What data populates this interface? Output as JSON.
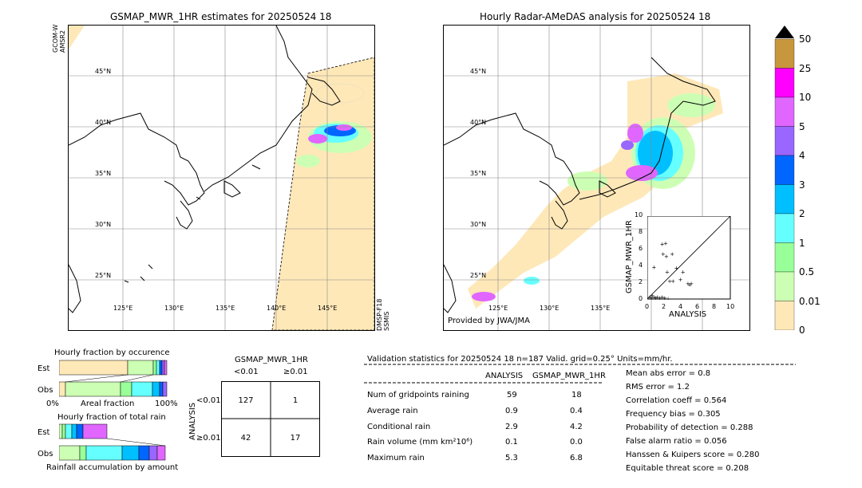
{
  "left_map": {
    "title": "GSMAP_MWR_1HR estimates for 20250524 18",
    "sat_top": "GCOM-W\nAMSR2",
    "sat_top_1": "GCOM-W",
    "sat_top_2": "AMSR2",
    "sat_bottom_1": "DMSP-F18",
    "sat_bottom_2": "SSMIS"
  },
  "right_map": {
    "title": "Hourly Radar-AMeDAS analysis for 20250524 18",
    "credit": "Provided by JWA/JMA"
  },
  "lat_labels": [
    "45°N",
    "40°N",
    "35°N",
    "30°N",
    "25°N"
  ],
  "lon_labels": [
    "125°E",
    "130°E",
    "135°E",
    "140°E",
    "145°E"
  ],
  "colorbar": {
    "labels": [
      "50",
      "25",
      "10",
      "5",
      "4",
      "3",
      "2",
      "1",
      "0.5",
      "0.01",
      "0"
    ],
    "colors": [
      "#c8963c",
      "#ff00ff",
      "#e066ff",
      "#9966ff",
      "#0066ff",
      "#00bfff",
      "#66ffff",
      "#99ff99",
      "#ccffb3",
      "#ffe8b8"
    ]
  },
  "scatter_inset": {
    "xlabel": "ANALYSIS",
    "ylabel": "GSMAP_MWR_1HR",
    "ticks": [
      "0",
      "2",
      "4",
      "6",
      "8",
      "10"
    ]
  },
  "fraction_occurrence": {
    "title": "Hourly fraction by occurence",
    "est_label": "Est",
    "obs_label": "Obs",
    "axis_left": "0%",
    "axis_mid": "Areal fraction",
    "axis_right": "100%"
  },
  "fraction_total": {
    "title": "Hourly fraction of total rain",
    "est_label": "Est",
    "obs_label": "Obs",
    "axis_label": "Rainfall accumulation by amount"
  },
  "contingency": {
    "title": "GSMAP_MWR_1HR",
    "col_lt": "<0.01",
    "col_ge": "≥0.01",
    "row_axis": "ANALYSIS",
    "row_lt": "<0.01",
    "row_ge": "≥0.01",
    "cells": [
      "127",
      "1",
      "42",
      "17"
    ]
  },
  "validation": {
    "header": "Validation statistics for 20250524 18  n=187 Valid. grid=0.25° Units=mm/hr.",
    "col_analysis": "ANALYSIS",
    "col_gsmap": "GSMAP_MWR_1HR",
    "rows": [
      {
        "label": "Num of gridpoints raining",
        "analysis": "59",
        "gsmap": "18"
      },
      {
        "label": "Average rain",
        "analysis": "0.9",
        "gsmap": "0.4"
      },
      {
        "label": "Conditional rain",
        "analysis": "2.9",
        "gsmap": "4.2"
      },
      {
        "label": "Rain volume (mm km²10⁶)",
        "analysis": "0.1",
        "gsmap": "0.0"
      },
      {
        "label": "Maximum rain",
        "analysis": "5.3",
        "gsmap": "6.8"
      }
    ],
    "scores": [
      "Mean abs error =    0.8",
      "RMS error =    1.2",
      "Correlation coeff =  0.564",
      "Frequency bias =  0.305",
      "Probability of detection =  0.288",
      "False alarm ratio =  0.056",
      "Hanssen & Kuipers score =  0.280",
      "Equitable threat score =  0.208"
    ]
  },
  "chart_data": {
    "type": "scatter",
    "xlabel": "ANALYSIS",
    "ylabel": "GSMAP_MWR_1HR",
    "xlim": [
      0,
      10
    ],
    "ylim": [
      0,
      10
    ],
    "points": [
      [
        1.8,
        6.7
      ],
      [
        2.2,
        6.8
      ],
      [
        1.9,
        5.5
      ],
      [
        2.3,
        5.2
      ],
      [
        3.0,
        5.5
      ],
      [
        0.8,
        3.9
      ],
      [
        3.5,
        3.8
      ],
      [
        2.4,
        3.3
      ],
      [
        4.3,
        3.3
      ],
      [
        2.7,
        2.2
      ],
      [
        3.1,
        2.2
      ],
      [
        4.0,
        2.4
      ],
      [
        4.9,
        1.9
      ],
      [
        5.3,
        1.9
      ],
      [
        5.1,
        1.8
      ],
      [
        0.3,
        0.3
      ],
      [
        0.5,
        0.2
      ],
      [
        0.8,
        0.3
      ],
      [
        1.0,
        0.2
      ],
      [
        1.2,
        0.3
      ],
      [
        1.5,
        0.2
      ],
      [
        1.8,
        0.3
      ],
      [
        2.1,
        0.2
      ],
      [
        2.5,
        0.1
      ],
      [
        0.6,
        0.5
      ]
    ]
  }
}
